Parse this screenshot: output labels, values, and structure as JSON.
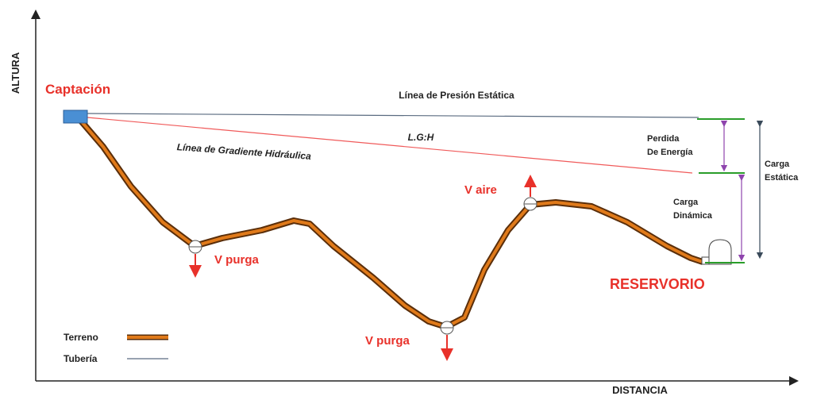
{
  "axes": {
    "y_label": "ALTURA",
    "x_label": "DISTANCIA"
  },
  "labels": {
    "source": "Captación",
    "static_line": "Línea de Presión Estática",
    "lgh": "L.G:H",
    "gradient_line": "Línea de Gradiente Hidráulica",
    "valve_purge_1": "V purga",
    "valve_purge_2": "V purga",
    "valve_air": "V aire",
    "reservoir": "RESERVORIO",
    "energy_loss": [
      "Perdida",
      "De Energía"
    ],
    "dynamic_head": [
      "Carga",
      "Dinámica"
    ],
    "static_head": [
      "Carga",
      "Estática"
    ]
  },
  "legend": {
    "terrain": "Terreno",
    "pipe": "Tubería"
  }
}
